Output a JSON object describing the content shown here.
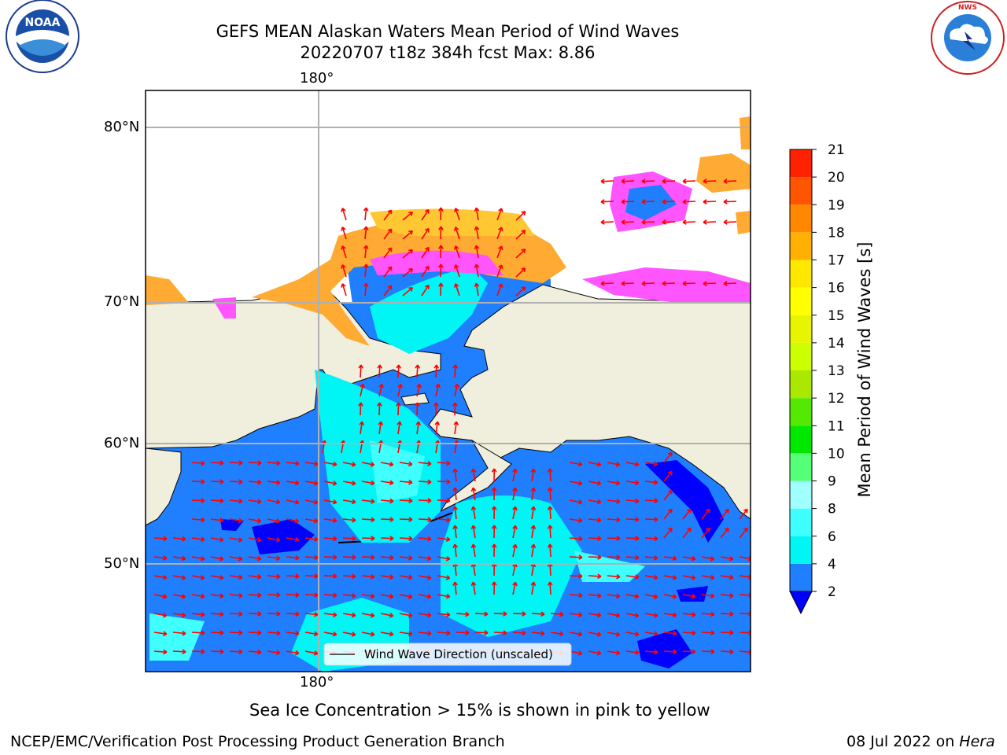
{
  "header": {
    "title_line1": "GEFS MEAN Alaskan Waters Mean Period of Wind Waves",
    "title_line2": "20220707 t18z 384h fcst   Max: 8.86"
  },
  "logos": {
    "left": {
      "text": "NOAA",
      "ring_text": "NATIONAL OCEANIC AND ATMOSPHERIC ADMINISTRATION · U.S. DEPARTMENT OF COMMERCE"
    },
    "right": {
      "ring_text": "NATIONAL WEATHER SERVICE"
    }
  },
  "map": {
    "lon_label_top": "180°",
    "lon_label_bottom": "180°",
    "lat_labels": [
      "80°N",
      "70°N",
      "60°N",
      "50°N"
    ],
    "legend_label": "Wind Wave Direction (unscaled)",
    "arrow_color": "#ff0000",
    "land_color": "#f0eedc",
    "ocean_colors": {
      "2-4": "#1f7fff",
      "4-6": "#00f5f5",
      "6-8": "#40ffff",
      "below-2": "#0000ff"
    },
    "ice_colors": [
      "#ff55ff",
      "#ffaa33",
      "#ffc833"
    ]
  },
  "colorbar": {
    "label": "Mean Period of Wind Waves [s]",
    "ticks": [
      "2",
      "4",
      "6",
      "8",
      "9",
      "10",
      "11",
      "12",
      "13",
      "14",
      "15",
      "16",
      "17",
      "18",
      "19",
      "20",
      "21"
    ],
    "colors": [
      "#1f7fff",
      "#00f5f5",
      "#40ffff",
      "#a0ffff",
      "#55ff77",
      "#00e800",
      "#55e800",
      "#aae800",
      "#ccff00",
      "#e8f500",
      "#ffff00",
      "#ffe800",
      "#ffb000",
      "#ff8800",
      "#ff5500",
      "#ff2200"
    ],
    "extend_color": "#0000ff"
  },
  "footer": {
    "ice_note": "Sea Ice Concentration > 15% is shown in pink to yellow",
    "branch": "NCEP/EMC/Verification Post Processing Product Generation Branch",
    "date": "08 Jul 2022 on ",
    "machine": "Hera"
  }
}
